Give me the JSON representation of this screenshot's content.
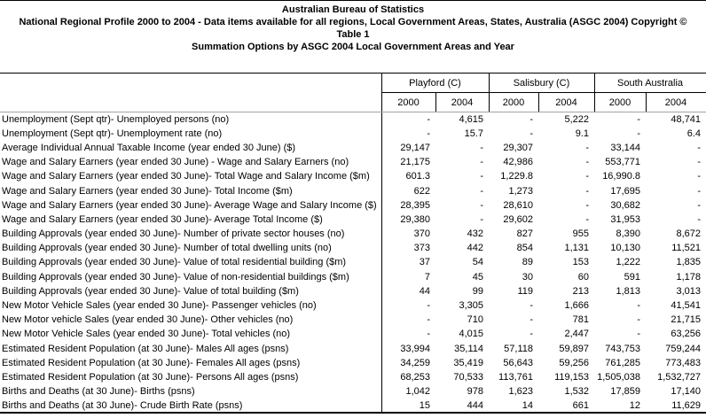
{
  "header": {
    "line1": "Australian Bureau of Statistics",
    "line2": "National Regional Profile 2000 to 2004 - Data items available for all regions, Local Government Areas, States, Australia (ASGC 2004) Copyright ©",
    "line3": "Table 1",
    "line4": "Summation Options by ASGC 2004 Local Government Areas and Year"
  },
  "colors": {
    "border": "#000000",
    "header_underline": "#a5a295"
  },
  "table": {
    "column_groups": [
      {
        "label": "Playford (C)",
        "years": [
          "2000",
          "2004"
        ]
      },
      {
        "label": "Salisbury (C)",
        "years": [
          "2000",
          "2004"
        ]
      },
      {
        "label": "South Australia",
        "years": [
          "2000",
          "2004"
        ]
      }
    ],
    "rows": [
      {
        "label": "Unemployment (Sept qtr)- Unemployed persons (no)",
        "values": [
          "-",
          "4,615",
          "-",
          "5,222",
          "-",
          "48,741"
        ]
      },
      {
        "label": "Unemployment (Sept qtr)- Unemployment rate (no)",
        "values": [
          "-",
          "15.7",
          "-",
          "9.1",
          "-",
          "6.4"
        ]
      },
      {
        "label": "Average Individual Annual Taxable Income (year ended 30 June) ($)",
        "values": [
          "29,147",
          "-",
          "29,307",
          "-",
          "33,144",
          "-"
        ]
      },
      {
        "label": "Wage and Salary Earners (year ended 30 June) - Wage and Salary Earners (no)",
        "values": [
          "21,175",
          "-",
          "42,986",
          "-",
          "553,771",
          "-"
        ]
      },
      {
        "label": "Wage and Salary Earners (year ended 30 June)- Total Wage and Salary Income ($m)",
        "values": [
          "601.3",
          "-",
          "1,229.8",
          "-",
          "16,990.8",
          "-"
        ]
      },
      {
        "label": "Wage and Salary Earners (year ended 30 June)- Total Income ($m)",
        "values": [
          "622",
          "-",
          "1,273",
          "-",
          "17,695",
          "-"
        ]
      },
      {
        "label": "Wage and Salary Earners (year ended 30 June)- Average Wage and Salary Income ($)",
        "values": [
          "28,395",
          "-",
          "28,610",
          "-",
          "30,682",
          "-"
        ]
      },
      {
        "label": "Wage and Salary Earners (year ended 30 June)- Average Total Income ($)",
        "values": [
          "29,380",
          "-",
          "29,602",
          "-",
          "31,953",
          "-"
        ]
      },
      {
        "label": "Building Approvals (year ended 30 June)- Number of private sector houses (no)",
        "values": [
          "370",
          "432",
          "827",
          "955",
          "8,390",
          "8,672"
        ]
      },
      {
        "label": "Building Approvals (year ended 30 June)- Number of total dwelling units (no)",
        "values": [
          "373",
          "442",
          "854",
          "1,131",
          "10,130",
          "11,521"
        ]
      },
      {
        "label": "Building Approvals (year ended 30 June)- Value of total residential building ($m)",
        "values": [
          "37",
          "54",
          "89",
          "153",
          "1,222",
          "1,835"
        ]
      },
      {
        "label": "Building Approvals (year ended 30 June)- Value of non-residential buildings ($m)",
        "values": [
          "7",
          "45",
          "30",
          "60",
          "591",
          "1,178"
        ]
      },
      {
        "label": "Building Approvals (year ended 30 June)- Value of total building ($m)",
        "values": [
          "44",
          "99",
          "119",
          "213",
          "1,813",
          "3,013"
        ]
      },
      {
        "label": "New Motor Vehicle Sales (year ended 30 June)- Passenger vehicles (no)",
        "values": [
          "-",
          "3,305",
          "-",
          "1,666",
          "-",
          "41,541"
        ]
      },
      {
        "label": "New Motor vehicle Sales (year ended 30 June)- Other vehicles (no)",
        "values": [
          "-",
          "710",
          "-",
          "781",
          "-",
          "21,715"
        ]
      },
      {
        "label": "New Motor Vehicle Sales (year ended 30 June)- Total vehicles (no)",
        "values": [
          "-",
          "4,015",
          "-",
          "2,447",
          "-",
          "63,256"
        ]
      },
      {
        "label": "Estimated Resident Population (at 30 June)- Males All ages (psns)",
        "values": [
          "33,994",
          "35,114",
          "57,118",
          "59,897",
          "743,753",
          "759,244"
        ]
      },
      {
        "label": "Estimated Resident Population (at 30 June)- Females All ages (psns)",
        "values": [
          "34,259",
          "35,419",
          "56,643",
          "59,256",
          "761,285",
          "773,483"
        ]
      },
      {
        "label": "Estimated Resident Population (at 30 June)- Persons All ages (psns)",
        "values": [
          "68,253",
          "70,533",
          "113,761",
          "119,153",
          "1,505,038",
          "1,532,727"
        ]
      },
      {
        "label": "Births and Deaths (at 30 June)- Births (psns)",
        "values": [
          "1,042",
          "978",
          "1,623",
          "1,532",
          "17,859",
          "17,140"
        ]
      },
      {
        "label": "Births and Deaths (at 30 June)- Crude Birth Rate (psns)",
        "values": [
          "15",
          "444",
          "14",
          "661",
          "12",
          "11,629"
        ]
      }
    ]
  }
}
